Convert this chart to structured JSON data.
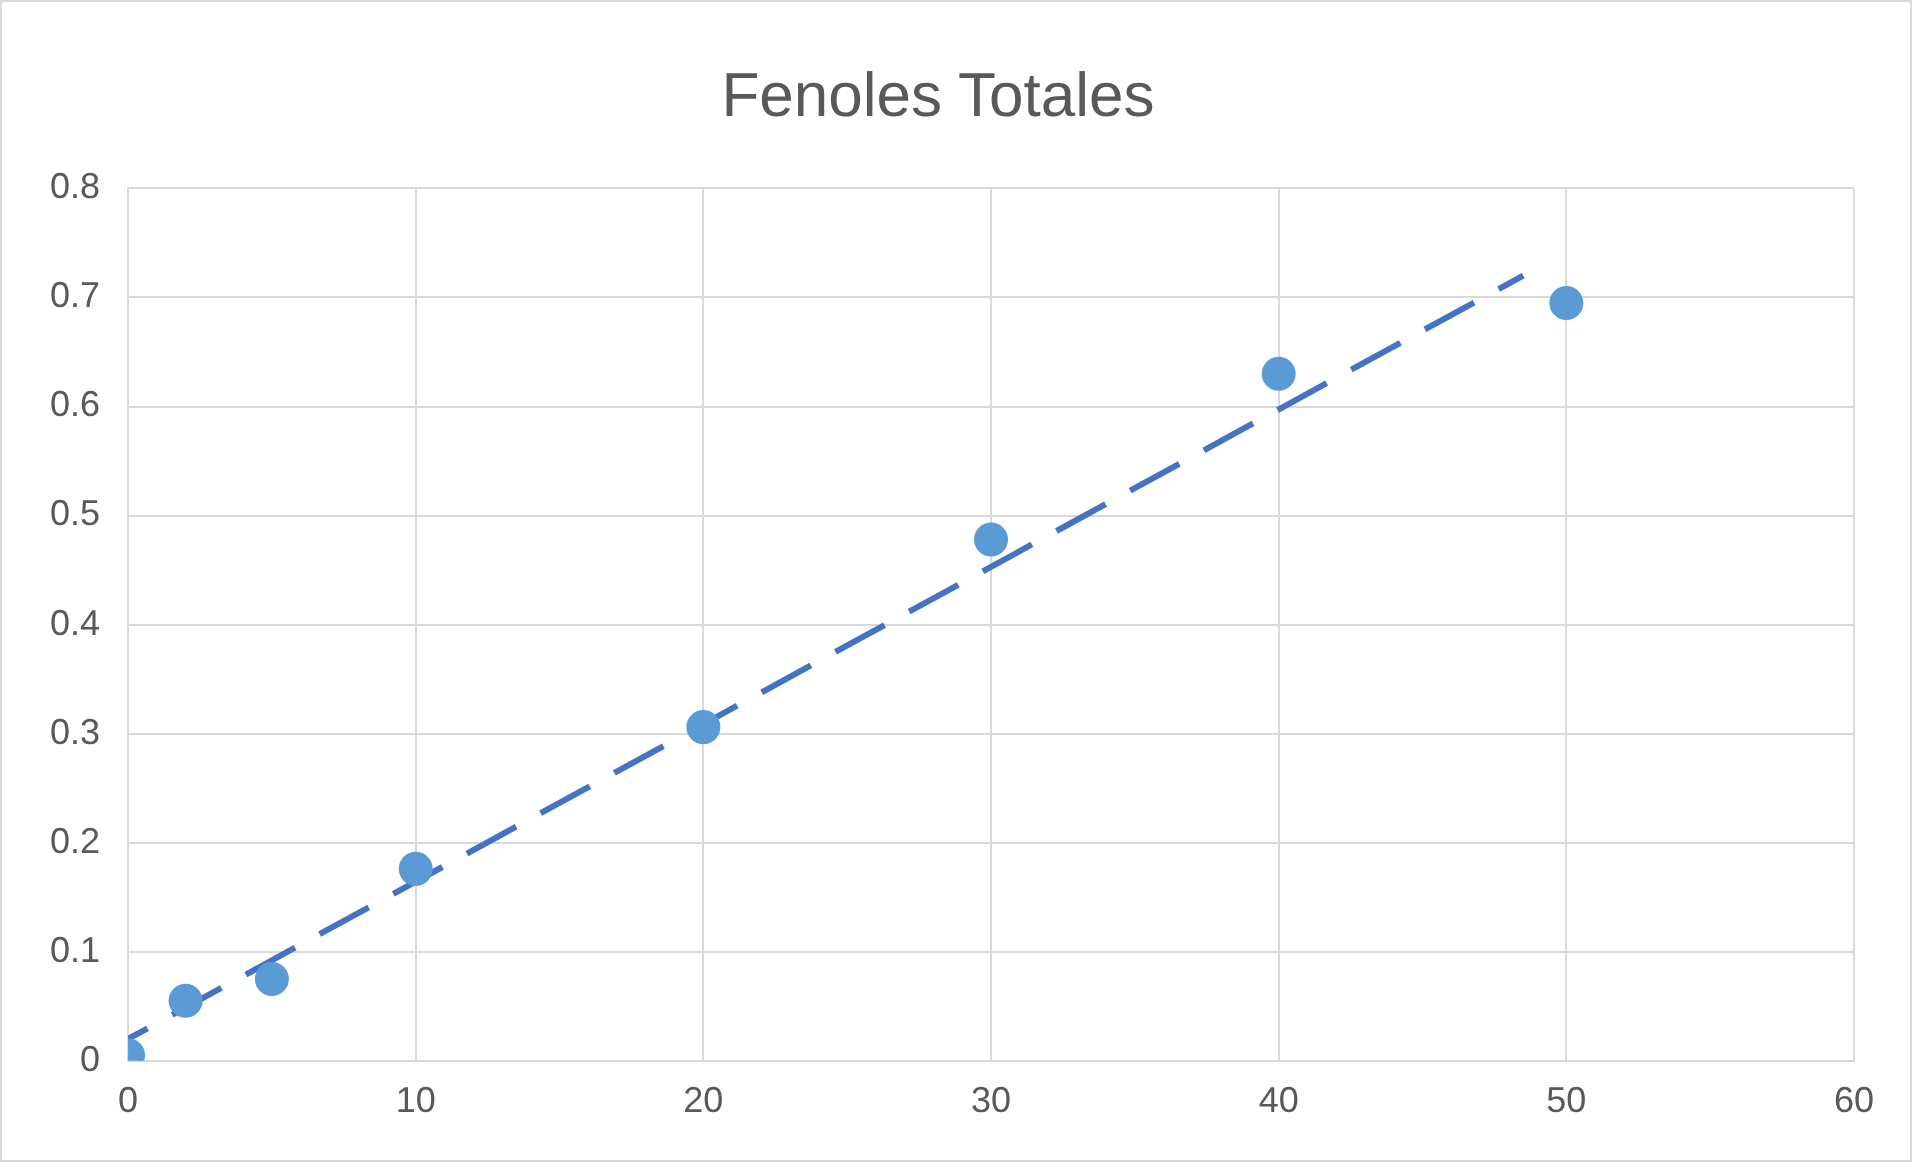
{
  "chart_data": {
    "type": "scatter",
    "title": "Fenoles Totales",
    "x": [
      0,
      2,
      5,
      10,
      20,
      30,
      40,
      50
    ],
    "series": [
      {
        "type": "scatter",
        "color": "#5b9bd5",
        "values": [
          0.005,
          0.055,
          0.075,
          0.176,
          0.306,
          0.478,
          0.63,
          0.695
        ],
        "marker": "circle"
      },
      {
        "type": "line",
        "color": "#4472c4",
        "x": [
          0,
          48.5
        ],
        "values": [
          0.02,
          0.72
        ],
        "line_style": "dashed",
        "marker": "none"
      }
    ],
    "xlim": [
      0,
      60
    ],
    "xticks": [
      0,
      10,
      20,
      30,
      40,
      50,
      60
    ],
    "ylim": [
      0,
      0.8
    ],
    "yticks": [
      0,
      0.1,
      0.2,
      0.3,
      0.4,
      0.5,
      0.6,
      0.7,
      0.8
    ],
    "grid": true,
    "legend": false
  }
}
